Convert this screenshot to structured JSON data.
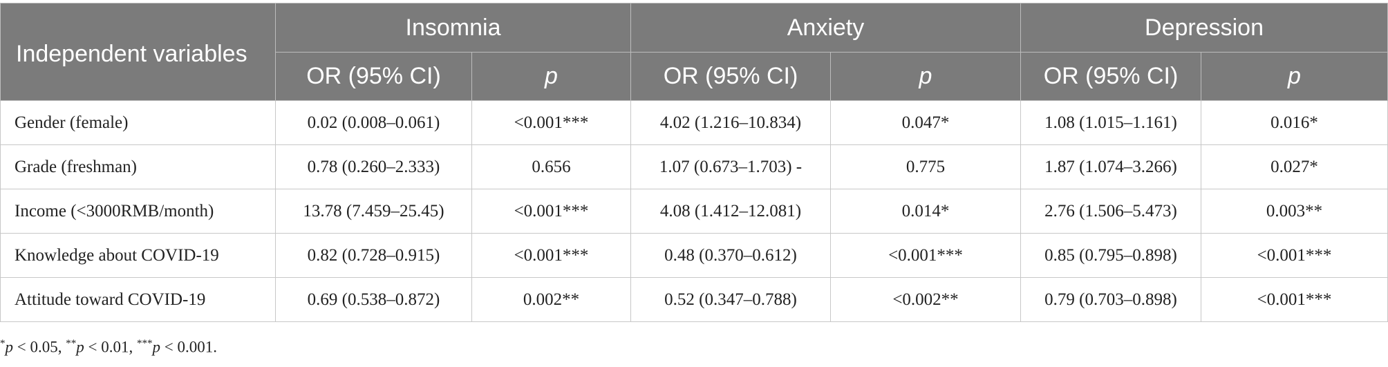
{
  "table": {
    "header": {
      "independent": "Independent variables",
      "groups": [
        "Insomnia",
        "Anxiety",
        "Depression"
      ],
      "or_label": "OR (95% CI)",
      "p_label": "p"
    },
    "rows": [
      {
        "label": "Gender (female)",
        "cells": [
          "0.02 (0.008–0.061)",
          "<0.001***",
          "4.02 (1.216–10.834)",
          "0.047*",
          "1.08 (1.015–1.161)",
          "0.016*"
        ]
      },
      {
        "label": "Grade (freshman)",
        "cells": [
          "0.78 (0.260–2.333)",
          "0.656",
          "1.07 (0.673–1.703) -",
          "0.775",
          "1.87 (1.074–3.266)",
          "0.027*"
        ]
      },
      {
        "label": "Income (<3000RMB/month)",
        "cells": [
          "13.78 (7.459–25.45)",
          "<0.001***",
          "4.08 (1.412–12.081)",
          "0.014*",
          "2.76 (1.506–5.473)",
          "0.003**"
        ]
      },
      {
        "label": "Knowledge about COVID-19",
        "cells": [
          "0.82 (0.728–0.915)",
          "<0.001***",
          "0.48 (0.370–0.612)",
          "<0.001***",
          "0.85 (0.795–0.898)",
          "<0.001***"
        ]
      },
      {
        "label": "Attitude toward COVID-19",
        "cells": [
          "0.69 (0.538–0.872)",
          "0.002**",
          "0.52 (0.347–0.788)",
          "<0.002**",
          "0.79 (0.703–0.898)",
          "<0.001***"
        ]
      }
    ]
  },
  "footnote": {
    "sym1": "*",
    "p1": "p",
    "t1": " < 0.05, ",
    "sym2": "**",
    "p2": "p",
    "t2": " < 0.01, ",
    "sym3": "***",
    "p3": "p",
    "t3": " < 0.001."
  }
}
